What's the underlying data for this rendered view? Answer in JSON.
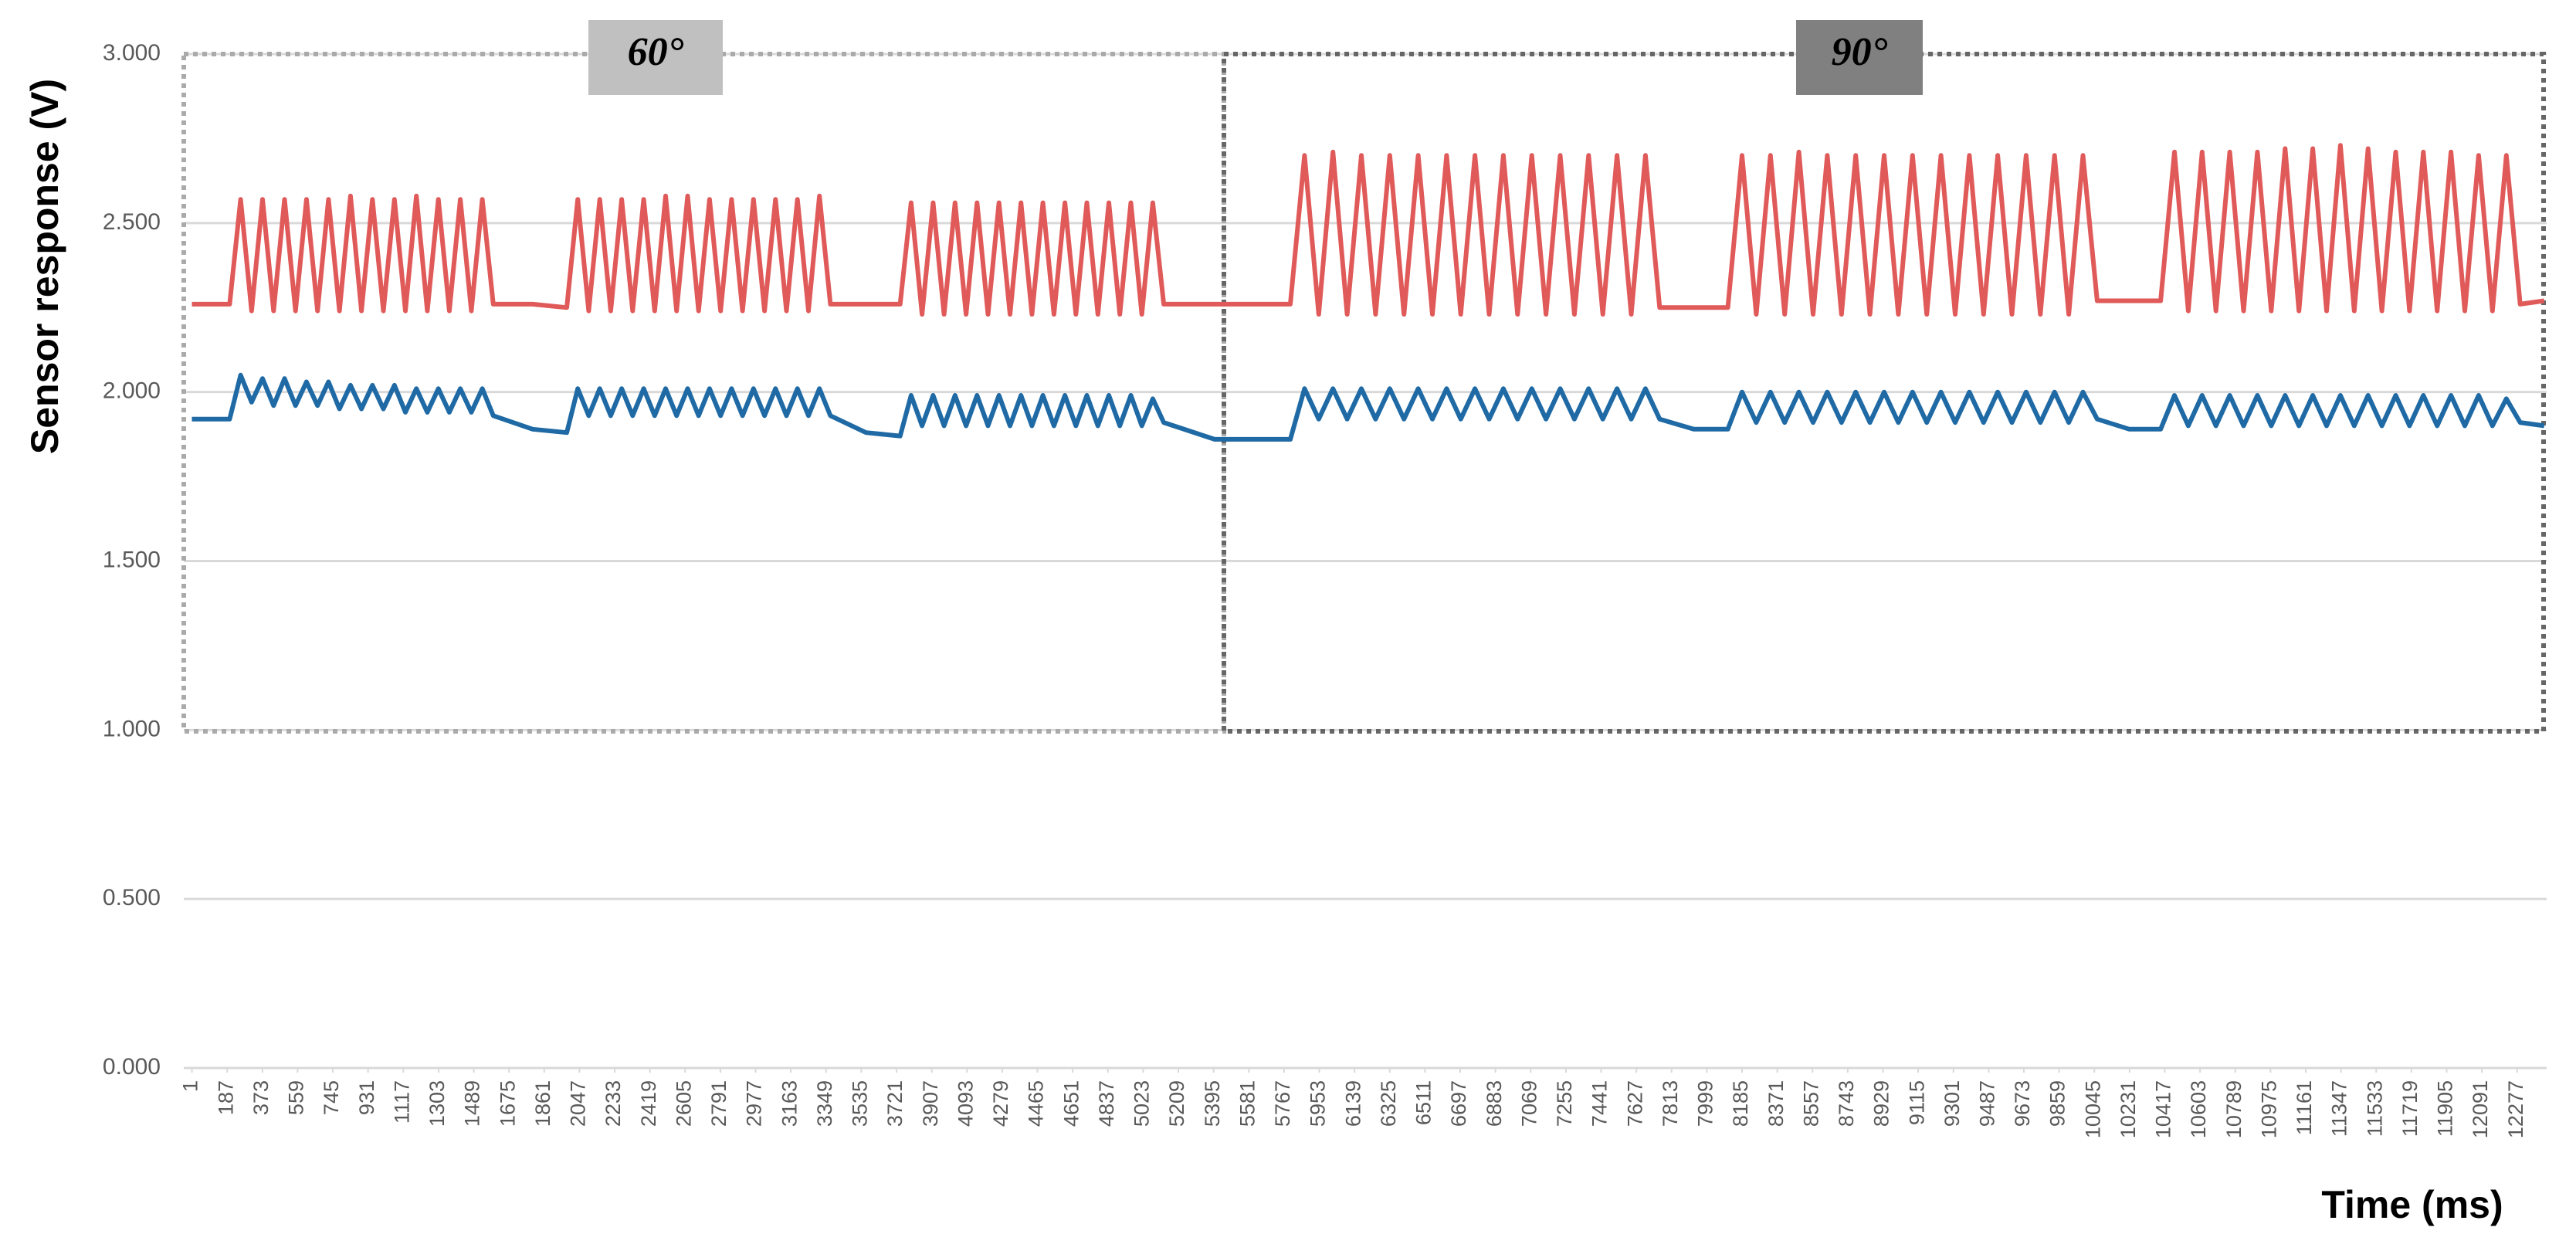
{
  "chart_data": {
    "type": "line",
    "y_label": "Sensor response (V)",
    "x_label": "Time (ms)",
    "annotations": [
      "60°",
      "90°"
    ],
    "x": [
      1,
      200,
      258,
      316,
      374,
      432,
      490,
      548,
      606,
      664,
      722,
      780,
      838,
      896,
      954,
      1012,
      1070,
      1128,
      1186,
      1244,
      1302,
      1360,
      1418,
      1476,
      1534,
      1592,
      1800,
      1980,
      2038,
      2096,
      2154,
      2212,
      2270,
      2328,
      2386,
      2444,
      2502,
      2560,
      2618,
      2676,
      2734,
      2792,
      2850,
      2908,
      2966,
      3024,
      3082,
      3140,
      3198,
      3256,
      3314,
      3372,
      3560,
      3740,
      3798,
      3856,
      3914,
      3972,
      4030,
      4088,
      4146,
      4204,
      4262,
      4320,
      4378,
      4436,
      4494,
      4552,
      4610,
      4668,
      4726,
      4784,
      4842,
      4900,
      4958,
      5016,
      5074,
      5132,
      5400,
      5800,
      5875,
      5950,
      6025,
      6100,
      6175,
      6250,
      6325,
      6400,
      6475,
      6550,
      6625,
      6700,
      6775,
      6850,
      6925,
      7000,
      7075,
      7150,
      7225,
      7300,
      7375,
      7450,
      7525,
      7600,
      7675,
      7750,
      7930,
      8110,
      8185,
      8260,
      8335,
      8410,
      8485,
      8560,
      8635,
      8710,
      8785,
      8860,
      8935,
      9010,
      9085,
      9160,
      9235,
      9310,
      9385,
      9460,
      9535,
      9610,
      9685,
      9760,
      9835,
      9910,
      9985,
      10060,
      10230,
      10395,
      10468,
      10541,
      10614,
      10687,
      10760,
      10833,
      10906,
      10979,
      11052,
      11125,
      11198,
      11271,
      11344,
      11417,
      11490,
      11563,
      11636,
      11709,
      11782,
      11855,
      11928,
      12001,
      12074,
      12147,
      12220,
      12293,
      12420
    ],
    "series": [
      {
        "color": "#e05a5a",
        "values": [
          2.26,
          2.26,
          2.57,
          2.24,
          2.57,
          2.24,
          2.57,
          2.24,
          2.57,
          2.24,
          2.57,
          2.24,
          2.58,
          2.24,
          2.57,
          2.24,
          2.57,
          2.24,
          2.58,
          2.24,
          2.57,
          2.24,
          2.57,
          2.24,
          2.57,
          2.26,
          2.26,
          2.25,
          2.57,
          2.24,
          2.57,
          2.24,
          2.57,
          2.24,
          2.57,
          2.24,
          2.58,
          2.24,
          2.58,
          2.24,
          2.57,
          2.24,
          2.57,
          2.24,
          2.57,
          2.24,
          2.57,
          2.24,
          2.57,
          2.24,
          2.58,
          2.26,
          2.26,
          2.26,
          2.56,
          2.23,
          2.56,
          2.23,
          2.56,
          2.23,
          2.56,
          2.23,
          2.56,
          2.23,
          2.56,
          2.23,
          2.56,
          2.23,
          2.56,
          2.23,
          2.56,
          2.23,
          2.56,
          2.23,
          2.56,
          2.23,
          2.56,
          2.26,
          2.26,
          2.26,
          2.7,
          2.23,
          2.71,
          2.23,
          2.7,
          2.23,
          2.7,
          2.23,
          2.7,
          2.23,
          2.7,
          2.23,
          2.7,
          2.23,
          2.7,
          2.23,
          2.7,
          2.23,
          2.7,
          2.23,
          2.7,
          2.23,
          2.7,
          2.23,
          2.7,
          2.25,
          2.25,
          2.25,
          2.7,
          2.23,
          2.7,
          2.23,
          2.71,
          2.23,
          2.7,
          2.23,
          2.7,
          2.23,
          2.7,
          2.23,
          2.7,
          2.23,
          2.7,
          2.23,
          2.7,
          2.23,
          2.7,
          2.23,
          2.7,
          2.23,
          2.7,
          2.23,
          2.7,
          2.27,
          2.27,
          2.27,
          2.71,
          2.24,
          2.71,
          2.24,
          2.71,
          2.24,
          2.71,
          2.24,
          2.72,
          2.24,
          2.72,
          2.24,
          2.73,
          2.24,
          2.72,
          2.24,
          2.71,
          2.24,
          2.71,
          2.24,
          2.71,
          2.24,
          2.7,
          2.24,
          2.7,
          2.26,
          2.27
        ]
      },
      {
        "color": "#1f6aa5",
        "values": [
          1.92,
          1.92,
          2.05,
          1.97,
          2.04,
          1.96,
          2.04,
          1.96,
          2.03,
          1.96,
          2.03,
          1.95,
          2.02,
          1.95,
          2.02,
          1.95,
          2.02,
          1.94,
          2.01,
          1.94,
          2.01,
          1.94,
          2.01,
          1.94,
          2.01,
          1.93,
          1.89,
          1.88,
          2.01,
          1.93,
          2.01,
          1.93,
          2.01,
          1.93,
          2.01,
          1.93,
          2.01,
          1.93,
          2.01,
          1.93,
          2.01,
          1.93,
          2.01,
          1.93,
          2.01,
          1.93,
          2.01,
          1.93,
          2.01,
          1.93,
          2.01,
          1.93,
          1.88,
          1.87,
          1.99,
          1.9,
          1.99,
          1.9,
          1.99,
          1.9,
          1.99,
          1.9,
          1.99,
          1.9,
          1.99,
          1.9,
          1.99,
          1.9,
          1.99,
          1.9,
          1.99,
          1.9,
          1.99,
          1.9,
          1.99,
          1.9,
          1.98,
          1.91,
          1.86,
          1.86,
          2.01,
          1.92,
          2.01,
          1.92,
          2.01,
          1.92,
          2.01,
          1.92,
          2.01,
          1.92,
          2.01,
          1.92,
          2.01,
          1.92,
          2.01,
          1.92,
          2.01,
          1.92,
          2.01,
          1.92,
          2.01,
          1.92,
          2.01,
          1.92,
          2.01,
          1.92,
          1.89,
          1.89,
          2.0,
          1.91,
          2.0,
          1.91,
          2.0,
          1.91,
          2.0,
          1.91,
          2.0,
          1.91,
          2.0,
          1.91,
          2.0,
          1.91,
          2.0,
          1.91,
          2.0,
          1.91,
          2.0,
          1.91,
          2.0,
          1.91,
          2.0,
          1.91,
          2.0,
          1.92,
          1.89,
          1.89,
          1.99,
          1.9,
          1.99,
          1.9,
          1.99,
          1.9,
          1.99,
          1.9,
          1.99,
          1.9,
          1.99,
          1.9,
          1.99,
          1.9,
          1.99,
          1.9,
          1.99,
          1.9,
          1.99,
          1.9,
          1.99,
          1.9,
          1.99,
          1.9,
          1.98,
          1.91,
          1.9
        ]
      }
    ],
    "xlim": [
      -42,
      12433
    ],
    "xticks": [
      1,
      187,
      373,
      559,
      745,
      931,
      1117,
      1303,
      1489,
      1675,
      1861,
      2047,
      2233,
      2419,
      2605,
      2791,
      2977,
      3163,
      3349,
      3535,
      3721,
      3907,
      4093,
      4279,
      4465,
      4651,
      4837,
      5023,
      5209,
      5395,
      5581,
      5767,
      5953,
      6139,
      6325,
      6511,
      6697,
      6883,
      7069,
      7255,
      7441,
      7627,
      7813,
      7999,
      8185,
      8371,
      8557,
      8743,
      8929,
      9115,
      9301,
      9487,
      9673,
      9859,
      10045,
      10231,
      10417,
      10603,
      10789,
      10975,
      11161,
      11347,
      11533,
      11719,
      11905,
      12091,
      12277
    ],
    "ylim": [
      0,
      3
    ],
    "yticks": [
      {
        "value": 0,
        "label": "0.000"
      },
      {
        "value": 0.5,
        "label": "0.500"
      },
      {
        "value": 1,
        "label": "1.000"
      },
      {
        "value": 1.5,
        "label": "1.500"
      },
      {
        "value": 2,
        "label": "2.000"
      },
      {
        "value": 2.5,
        "label": "2.500"
      },
      {
        "value": 3,
        "label": "3.000"
      }
    ],
    "grid": true
  }
}
